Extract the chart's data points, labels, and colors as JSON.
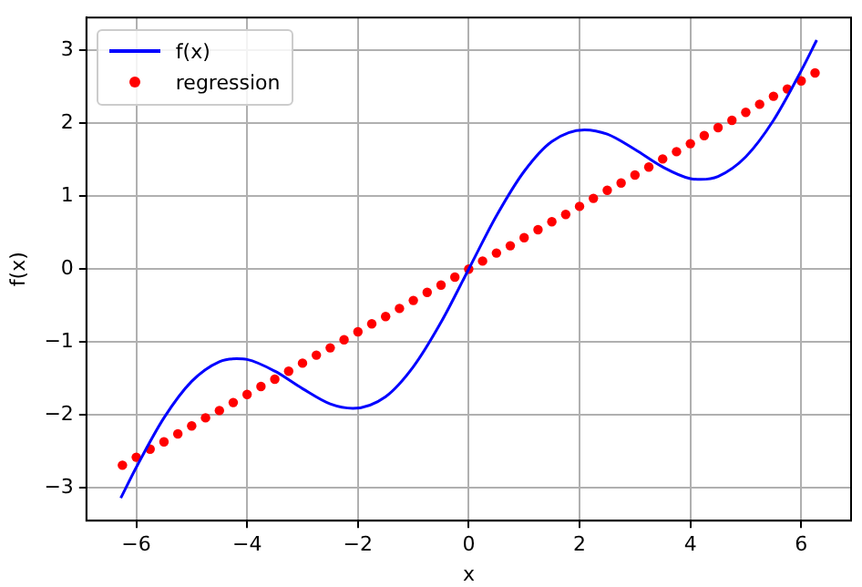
{
  "chart_data": {
    "type": "line",
    "xlabel": "x",
    "ylabel": "f(x)",
    "xlim": [
      -6.9,
      6.9
    ],
    "ylim": [
      -3.45,
      3.45
    ],
    "xticks": [
      -6,
      -4,
      -2,
      0,
      2,
      4,
      6
    ],
    "yticks": [
      -3,
      -2,
      -1,
      0,
      1,
      2,
      3
    ],
    "grid": true,
    "legend": "top left",
    "series": [
      {
        "name": "f(x)",
        "type": "line",
        "color": "#0000ff",
        "marker": "none",
        "line_style": "solid",
        "x": [
          -6.28,
          -6,
          -5.5,
          -5,
          -4.5,
          -4.19,
          -4,
          -3.5,
          -3,
          -2.5,
          -2.09,
          -1.5,
          -1,
          -0.5,
          0,
          0.5,
          1,
          1.5,
          2.09,
          2.5,
          3,
          3.5,
          4,
          4.19,
          4.5,
          5,
          5.5,
          6,
          6.28
        ],
        "values": [
          -3.14,
          -2.72,
          -2.04,
          -1.54,
          -1.27,
          -1.23,
          -1.24,
          -1.4,
          -1.64,
          -1.85,
          -1.91,
          -1.75,
          -1.34,
          -0.73,
          0,
          0.73,
          1.34,
          1.75,
          1.91,
          1.85,
          1.64,
          1.4,
          1.24,
          1.23,
          1.27,
          1.54,
          2.04,
          2.72,
          3.14
        ]
      },
      {
        "name": "regression",
        "type": "scatter",
        "color": "#ff0000",
        "marker": "circle",
        "x": [
          -6.25,
          -6,
          -5.75,
          -5.5,
          -5.25,
          -5,
          -4.75,
          -4.5,
          -4.25,
          -4,
          -3.75,
          -3.5,
          -3.25,
          -3,
          -2.75,
          -2.5,
          -2.25,
          -2,
          -1.75,
          -1.5,
          -1.25,
          -1,
          -0.75,
          -0.5,
          -0.25,
          0,
          0.25,
          0.5,
          0.75,
          1,
          1.25,
          1.5,
          1.75,
          2,
          2.25,
          2.5,
          2.75,
          3,
          3.25,
          3.5,
          3.75,
          4,
          4.25,
          4.5,
          4.75,
          5,
          5.25,
          5.5,
          5.75,
          6,
          6.25
        ],
        "values": [
          -2.69,
          -2.58,
          -2.47,
          -2.37,
          -2.26,
          -2.15,
          -2.04,
          -1.94,
          -1.83,
          -1.72,
          -1.61,
          -1.51,
          -1.4,
          -1.29,
          -1.18,
          -1.08,
          -0.97,
          -0.86,
          -0.75,
          -0.65,
          -0.54,
          -0.43,
          -0.32,
          -0.22,
          -0.11,
          0,
          0.11,
          0.22,
          0.32,
          0.43,
          0.54,
          0.65,
          0.75,
          0.86,
          0.97,
          1.08,
          1.18,
          1.29,
          1.4,
          1.51,
          1.61,
          1.72,
          1.83,
          1.94,
          2.04,
          2.15,
          2.26,
          2.37,
          2.47,
          2.58,
          2.69
        ]
      }
    ]
  }
}
